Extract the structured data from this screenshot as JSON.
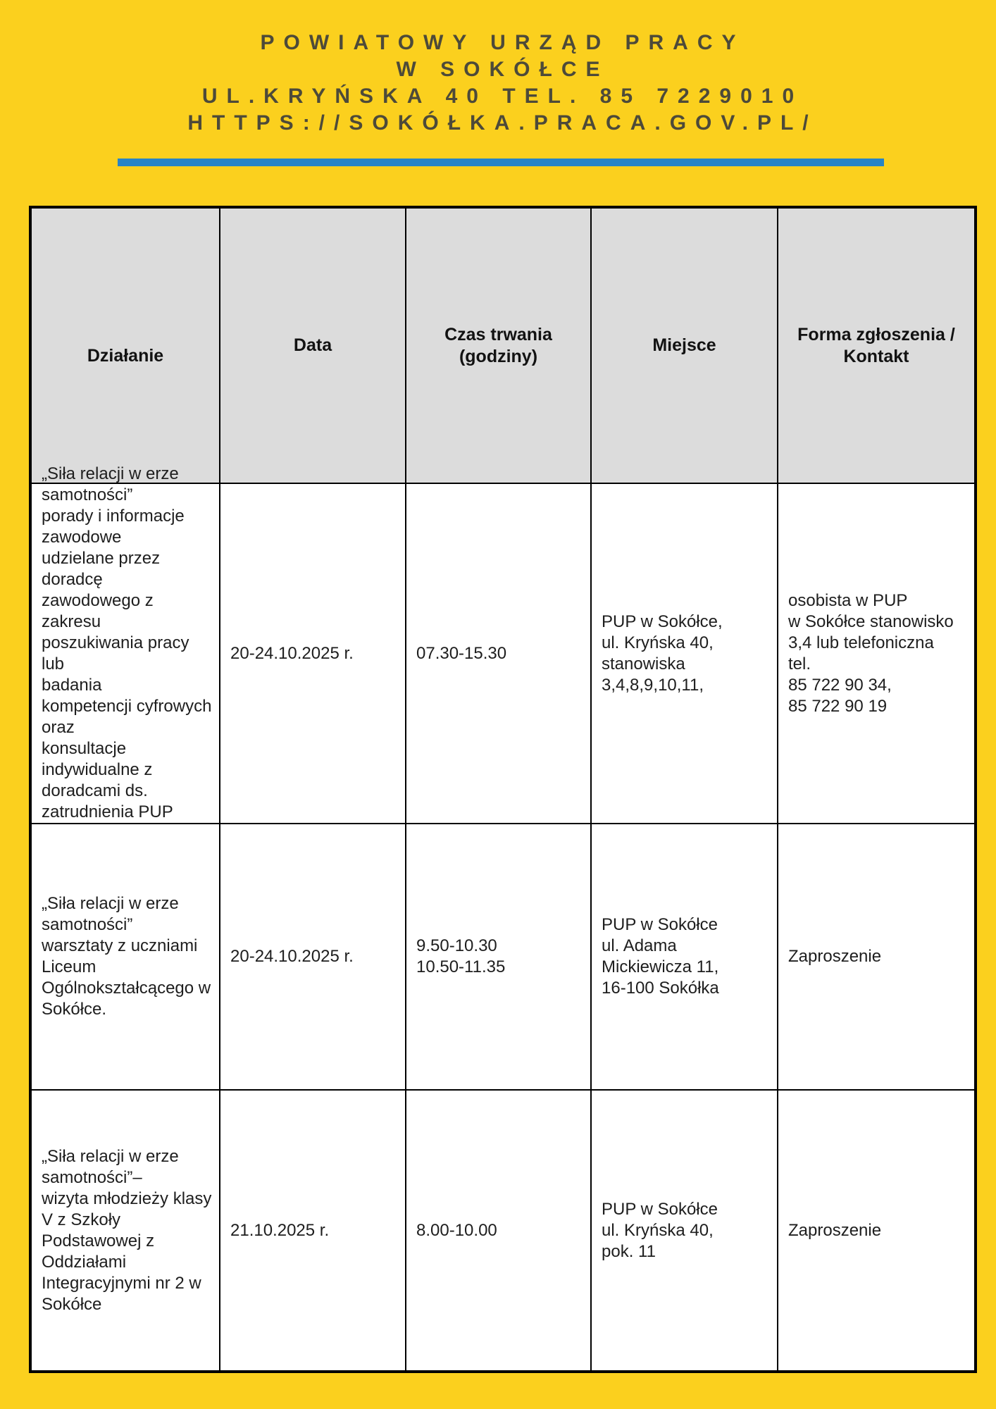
{
  "page": {
    "colors": {
      "background_yellow": "#FBD01E",
      "divider_blue": "#2884C5",
      "header_cell_gray": "#DCDCDC",
      "masthead_text": "#4D4A39",
      "table_border": "#000000"
    },
    "masthead": {
      "line1": "POWIATOWY URZĄD PRACY",
      "line2": "W SOKÓŁCE",
      "line3": "UL.KRYŃSKA 40 TEL. 85 7229010",
      "line4": "HTTPS://SOKÓŁKA.PRACA.GOV.PL/"
    }
  },
  "table": {
    "columns": [
      "Działanie",
      "Data",
      "Czas trwania\n(godziny)",
      "Miejsce",
      "Forma zgłoszenia /\nKontakt"
    ],
    "rows": [
      {
        "activity": "„Siła relacji w erze\nsamotności”\nporady i informacje\nzawodowe\nudzielane przez\ndoradcę\nzawodowego z zakresu\nposzukiwania pracy lub\nbadania\nkompetencji cyfrowych\noraz\nkonsultacje\nindywidualne z\ndoradcami ds.\nzatrudnienia PUP\nw Sokółce.",
        "date": "20-24.10.2025 r.",
        "time": "07.30-15.30",
        "place": "PUP w Sokółce,\nul. Kryńska 40,\nstanowiska\n3,4,8,9,10,11,",
        "contact": "osobista w PUP\nw Sokółce stanowisko\n3,4 lub telefoniczna\ntel.\n85 722 90 34,\n85 722 90 19"
      },
      {
        "activity": "„Siła relacji w erze\nsamotności”\nwarsztaty z uczniami\nLiceum\nOgólnokształcącego w\nSokółce.",
        "date": "20-24.10.2025 r.",
        "time": "9.50-10.30\n10.50-11.35",
        "place": "PUP w Sokółce\nul. Adama\nMickiewicza 11,\n16-100 Sokółka",
        "contact": "Zaproszenie"
      },
      {
        "activity": "„Siła relacji w erze\nsamotności”–\nwizyta młodzieży klasy\nV z Szkoły\nPodstawowej z\nOddziałami\nIntegracyjnymi nr 2 w\nSokółce",
        "date": "21.10.2025 r.",
        "time": "8.00-10.00",
        "place": "PUP w Sokółce\nul. Kryńska 40,\npok. 11",
        "contact": "Zaproszenie"
      }
    ]
  }
}
